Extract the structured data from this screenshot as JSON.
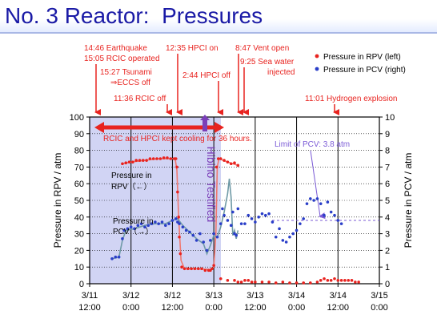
{
  "page": {
    "title": "No. 3 Reactor:  Pressures"
  },
  "colors": {
    "title": "#1a1aa6",
    "rpv_series": "#e8231f",
    "pcv_series": "#2a3ec8",
    "annotation": "#e8231f",
    "highlight_region": "#c9cdf2",
    "grid": "#000000",
    "pcv_limit": "#7b5bd6",
    "hibino_text": "#7b3fb8"
  },
  "annotations": {
    "earthquake": "14:46 Earthquake",
    "rcic_operated": "15:05 RCIC operated",
    "tsunami": "15:27 Tsunami",
    "eccs_off": "⇒ECCS off",
    "rcic_off": "11:36 RCIC off",
    "hpci_on": "12:35 HPCI on",
    "hpci_off": "2:44 HPCI off",
    "vent_open": "8:47 Vent open",
    "sea_water": "9:25 Sea water",
    "injected": "injected",
    "hydrogen": "11:01 Hydrogen explosion",
    "kept_cooling": "RCIC and HPCI kept cooling for 36 hours.",
    "hibino": "Hibino Testified",
    "pcv_limit": "Limit of PCV: 3.8 atm",
    "rpv_inline_1": "Pressure in",
    "rpv_inline_2": "RPV（←）",
    "pcv_inline_1": "Pressure in",
    "pcv_inline_2": "PCV（→）"
  },
  "chart_data": {
    "type": "scatter",
    "title": "",
    "xlabel": "",
    "ylabel": "Pressure in RPV / atm",
    "y2label": "Pressure in PCV / atm",
    "ylim": [
      0,
      100
    ],
    "y2lim": [
      0,
      10
    ],
    "y_ticks": [
      "0",
      "10",
      "20",
      "30",
      "40",
      "50",
      "60",
      "70",
      "80",
      "90",
      "100"
    ],
    "y2_ticks": [
      "0",
      "1",
      "2",
      "3",
      "4",
      "5",
      "6",
      "7",
      "8",
      "9",
      "10"
    ],
    "x_ticks": [
      {
        "line1": "3/11",
        "line2": "12:00"
      },
      {
        "line1": "3/12",
        "line2": "0:00"
      },
      {
        "line1": "3/12",
        "line2": "12:00"
      },
      {
        "line1": "3/13",
        "line2": "0:00"
      },
      {
        "line1": "3/13",
        "line2": "12:00"
      },
      {
        "line1": "3/14",
        "line2": "0:00"
      },
      {
        "line1": "3/14",
        "line2": "12:00"
      },
      {
        "line1": "3/15",
        "line2": "0:00"
      }
    ],
    "xlim_hours": [
      0,
      84
    ],
    "grid": true,
    "legend_position": "top-right",
    "series": [
      {
        "name": "Pressure in RPV (left)",
        "axis": "left",
        "points": [
          [
            9.5,
            72
          ],
          [
            10.5,
            72.5
          ],
          [
            11.5,
            73
          ],
          [
            12.5,
            73
          ],
          [
            13.5,
            74
          ],
          [
            14.5,
            74
          ],
          [
            15.5,
            74
          ],
          [
            16.5,
            74
          ],
          [
            17.5,
            75
          ],
          [
            18.5,
            75
          ],
          [
            19.5,
            75
          ],
          [
            20.5,
            75
          ],
          [
            21.5,
            75.5
          ],
          [
            22.5,
            75.5
          ],
          [
            23.5,
            75
          ],
          [
            24.5,
            75
          ],
          [
            25,
            75
          ],
          [
            25.3,
            70
          ],
          [
            25.5,
            55
          ],
          [
            25.8,
            40
          ],
          [
            26,
            28
          ],
          [
            26.3,
            18
          ],
          [
            26.7,
            10
          ],
          [
            27.5,
            9
          ],
          [
            28.5,
            9
          ],
          [
            29.5,
            9
          ],
          [
            30.5,
            9
          ],
          [
            31.5,
            9
          ],
          [
            32.5,
            9
          ],
          [
            33.5,
            8
          ],
          [
            34.5,
            8
          ],
          [
            35,
            8
          ],
          [
            35.5,
            9
          ],
          [
            36,
            11
          ],
          [
            36.8,
            70
          ],
          [
            37.3,
            75
          ],
          [
            38,
            75
          ],
          [
            39,
            74
          ],
          [
            40,
            73
          ],
          [
            41,
            72
          ],
          [
            42,
            72.5
          ],
          [
            43,
            71
          ],
          [
            38,
            3
          ],
          [
            40,
            2
          ],
          [
            42,
            2
          ],
          [
            43,
            1
          ],
          [
            44,
            1
          ],
          [
            45,
            2
          ],
          [
            46,
            2
          ],
          [
            47,
            1
          ],
          [
            48,
            1
          ],
          [
            50,
            1
          ],
          [
            52,
            1
          ],
          [
            54,
            0.5
          ],
          [
            56,
            1
          ],
          [
            58,
            0.5
          ],
          [
            60,
            0.5
          ],
          [
            62,
            0.5
          ],
          [
            64,
            0.5
          ],
          [
            66,
            1
          ],
          [
            67,
            2
          ],
          [
            68,
            3
          ],
          [
            69,
            2
          ],
          [
            70,
            2
          ],
          [
            71,
            3
          ],
          [
            72,
            2
          ],
          [
            73,
            2
          ],
          [
            74,
            2
          ],
          [
            75,
            2
          ],
          [
            76,
            2
          ],
          [
            77,
            1
          ],
          [
            78,
            1
          ]
        ]
      },
      {
        "name": "Pressure in PCV (right)",
        "axis": "right",
        "points": [
          [
            6.5,
            1.5
          ],
          [
            7.5,
            1.6
          ],
          [
            8.5,
            1.6
          ],
          [
            9.5,
            2.7
          ],
          [
            10,
            3.2
          ],
          [
            11,
            3.3
          ],
          [
            12,
            3.4
          ],
          [
            13,
            3.3
          ],
          [
            14,
            3.5
          ],
          [
            15,
            3.6
          ],
          [
            16,
            3.4
          ],
          [
            17,
            3.5
          ],
          [
            18,
            3.6
          ],
          [
            19,
            3.7
          ],
          [
            20,
            3.6
          ],
          [
            21,
            3.7
          ],
          [
            22,
            3.5
          ],
          [
            23,
            3.6
          ],
          [
            24,
            3.8
          ],
          [
            25,
            3.9
          ],
          [
            25.5,
            3.7
          ],
          [
            26,
            3.6
          ],
          [
            27,
            3.4
          ],
          [
            28,
            3.2
          ],
          [
            29,
            3.1
          ],
          [
            30,
            2.9
          ],
          [
            31,
            2.6
          ],
          [
            32,
            3.0
          ],
          [
            33,
            2.5
          ],
          [
            34,
            2.0
          ],
          [
            35,
            2.6
          ],
          [
            36,
            3.0
          ],
          [
            37,
            2.8
          ],
          [
            38,
            3.6
          ],
          [
            38.5,
            4.5
          ],
          [
            39,
            4.1
          ],
          [
            40,
            3.8
          ],
          [
            41,
            3.5
          ],
          [
            41.5,
            4.3
          ],
          [
            42,
            3.0
          ],
          [
            42.5,
            2.9
          ],
          [
            43,
            4.5
          ],
          [
            44,
            3.6
          ],
          [
            45,
            3.6
          ],
          [
            46,
            4.1
          ],
          [
            47,
            3.9
          ],
          [
            48,
            3.7
          ],
          [
            49,
            4.0
          ],
          [
            50,
            4.2
          ],
          [
            51,
            4.1
          ],
          [
            52,
            4.2
          ],
          [
            53,
            3.7
          ],
          [
            54,
            2.8
          ],
          [
            55,
            3.3
          ],
          [
            56,
            2.6
          ],
          [
            57,
            2.5
          ],
          [
            58,
            2.8
          ],
          [
            59,
            3.0
          ],
          [
            60,
            3.2
          ],
          [
            61,
            3.6
          ],
          [
            62,
            3.9
          ],
          [
            63,
            4.8
          ],
          [
            64,
            5.1
          ],
          [
            65,
            5.0
          ],
          [
            66,
            5.1
          ],
          [
            67,
            4.8
          ],
          [
            68,
            4.1
          ],
          [
            69,
            4.9
          ],
          [
            70,
            4.3
          ],
          [
            71,
            4.1
          ],
          [
            72,
            3.8
          ],
          [
            73,
            3.6
          ]
        ]
      }
    ],
    "rpv_fit_line": [
      [
        9.5,
        72
      ],
      [
        12,
        73
      ],
      [
        16,
        74
      ],
      [
        20,
        75
      ],
      [
        24.8,
        75
      ],
      [
        25.3,
        68
      ],
      [
        25.8,
        40
      ],
      [
        26.5,
        14
      ],
      [
        27.5,
        9
      ],
      [
        31,
        9
      ],
      [
        35,
        8.5
      ],
      [
        36,
        10
      ],
      [
        36.6,
        30
      ],
      [
        37,
        70
      ],
      [
        37.5,
        75
      ],
      [
        40,
        73
      ],
      [
        43,
        71
      ]
    ],
    "pcv_fit_line": [
      [
        6.5,
        1.5
      ],
      [
        8.5,
        1.6
      ],
      [
        9.5,
        2.6
      ],
      [
        10.5,
        3.2
      ],
      [
        13,
        3.3
      ],
      [
        16,
        3.5
      ],
      [
        19,
        3.6
      ],
      [
        22,
        3.6
      ],
      [
        24,
        3.8
      ],
      [
        25.5,
        3.9
      ],
      [
        27,
        3.5
      ],
      [
        29,
        3.1
      ],
      [
        31,
        2.7
      ],
      [
        33,
        2.4
      ],
      [
        34,
        1.8
      ],
      [
        35,
        2.3
      ],
      [
        36,
        2.9
      ],
      [
        37,
        2.8
      ],
      [
        38,
        3.4
      ],
      [
        39,
        4.3
      ],
      [
        40,
        5.4
      ],
      [
        40.5,
        6.3
      ],
      [
        41,
        5.2
      ],
      [
        41.5,
        2.9
      ],
      [
        42,
        3.2
      ],
      [
        42.5,
        2.7
      ],
      [
        43,
        3.2
      ]
    ],
    "pcv_limit": 3.8,
    "highlight_x": [
      0,
      37
    ],
    "kept_cooling_arrow": [
      1,
      36
    ]
  }
}
